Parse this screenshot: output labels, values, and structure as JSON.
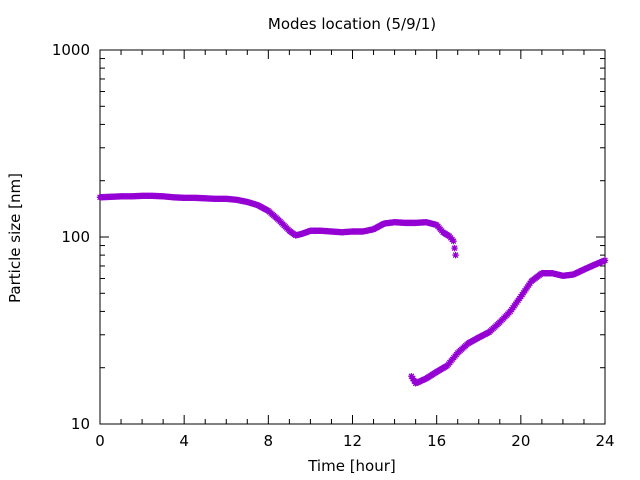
{
  "chart_data": {
    "type": "scatter",
    "title": "Modes location (5/9/1)",
    "xlabel": "Time [hour]",
    "ylabel": "Particle size [nm]",
    "xlim": [
      0,
      24
    ],
    "ylim": [
      10,
      1000
    ],
    "yscale": "log",
    "xticks": [
      0,
      4,
      8,
      12,
      16,
      20,
      24
    ],
    "xtick_labels": [
      "0",
      "4",
      "8",
      "12",
      "16",
      "20",
      "24"
    ],
    "yticks": [
      10,
      100,
      1000
    ],
    "ytick_labels": [
      "10",
      "100",
      "1000"
    ],
    "grid": false,
    "legend": "none",
    "marker_color": "#9400d3",
    "series": [
      {
        "values_xy": [
          [
            0.0,
            163
          ],
          [
            0.5,
            164
          ],
          [
            1.0,
            165
          ],
          [
            1.5,
            165
          ],
          [
            2.0,
            166
          ],
          [
            2.5,
            166
          ],
          [
            3.0,
            165
          ],
          [
            3.5,
            163
          ],
          [
            4.0,
            162
          ],
          [
            4.5,
            162
          ],
          [
            5.0,
            161
          ],
          [
            5.5,
            160
          ],
          [
            6.0,
            160
          ],
          [
            6.5,
            158
          ],
          [
            7.0,
            154
          ],
          [
            7.5,
            148
          ],
          [
            8.0,
            138
          ],
          [
            8.5,
            123
          ],
          [
            9.0,
            108
          ],
          [
            9.3,
            102
          ],
          [
            9.6,
            104
          ],
          [
            10.0,
            108
          ],
          [
            10.5,
            108
          ],
          [
            11.0,
            107
          ],
          [
            11.5,
            106
          ],
          [
            12.0,
            107
          ],
          [
            12.5,
            107
          ],
          [
            13.0,
            110
          ],
          [
            13.5,
            118
          ],
          [
            14.0,
            120
          ],
          [
            14.5,
            119
          ],
          [
            15.0,
            119
          ],
          [
            15.5,
            120
          ],
          [
            16.0,
            116
          ],
          [
            16.3,
            106
          ],
          [
            16.6,
            101
          ],
          [
            16.8,
            95
          ],
          [
            16.9,
            80
          ]
        ]
      },
      {
        "values_xy": [
          [
            14.8,
            18
          ],
          [
            15.0,
            16.5
          ],
          [
            15.5,
            17.5
          ],
          [
            16.0,
            19
          ],
          [
            16.5,
            20.5
          ],
          [
            17.0,
            24
          ],
          [
            17.5,
            27
          ],
          [
            18.0,
            29
          ],
          [
            18.5,
            31
          ],
          [
            19.0,
            35
          ],
          [
            19.5,
            40
          ],
          [
            20.0,
            48
          ],
          [
            20.5,
            58
          ],
          [
            21.0,
            64
          ],
          [
            21.5,
            64
          ],
          [
            22.0,
            62
          ],
          [
            22.5,
            63
          ],
          [
            23.0,
            67
          ],
          [
            23.5,
            71
          ],
          [
            24.0,
            75
          ]
        ]
      }
    ]
  }
}
